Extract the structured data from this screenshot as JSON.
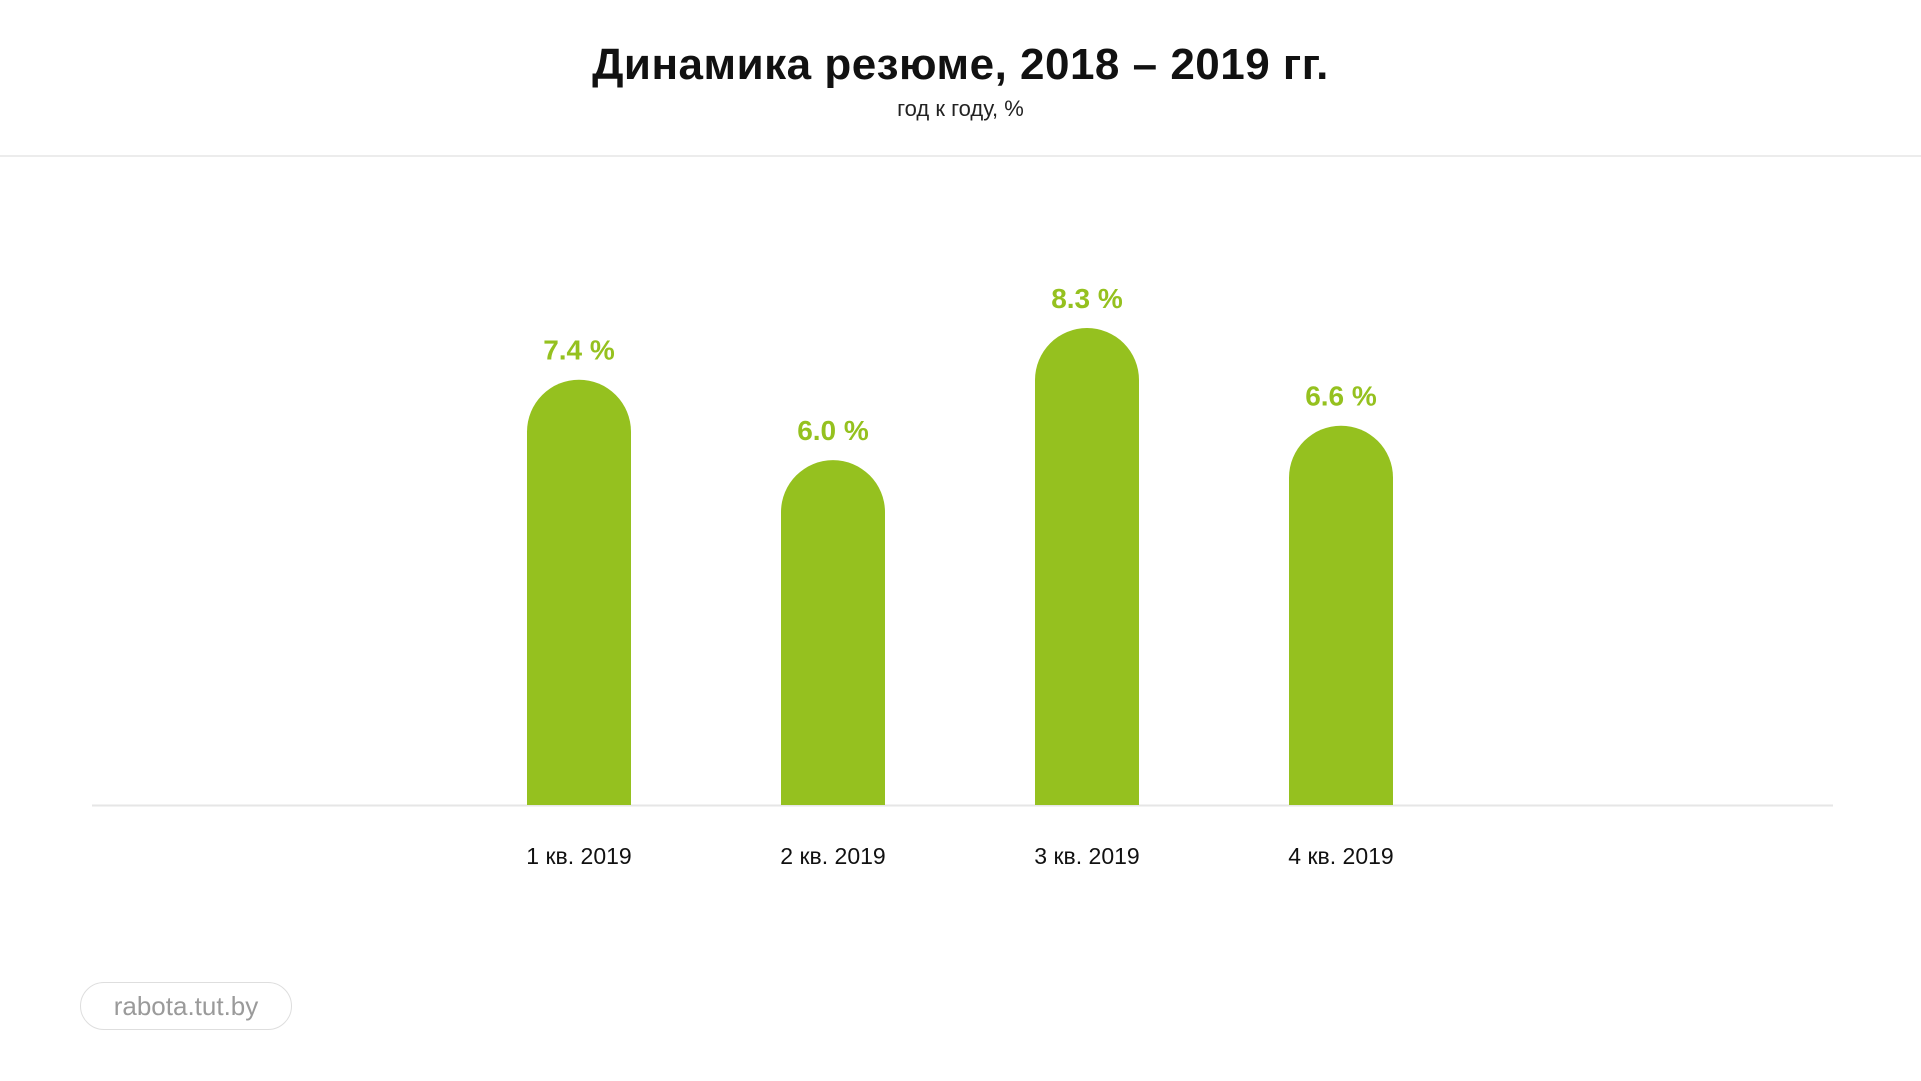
{
  "header": {
    "title": "Динамика резюме, 2018 – 2019 гг.",
    "subtitle": "год к году, %"
  },
  "chart_data": {
    "type": "bar",
    "title": "Динамика резюме, 2018 – 2019 гг.",
    "subtitle": "год к году, %",
    "categories": [
      "1 кв. 2019",
      "2 кв. 2019",
      "3 кв. 2019",
      "4 кв. 2019"
    ],
    "values": [
      7.4,
      6.0,
      8.3,
      6.6
    ],
    "value_labels": [
      "7.4 %",
      "6.0 %",
      "8.3 %",
      "6.6 %"
    ],
    "xlabel": "",
    "ylabel": "",
    "ylim": [
      0,
      8.3
    ],
    "grid": false,
    "legend": "none",
    "bar_style": "rounded-top",
    "colors": {
      "bar": "#95c11f",
      "value_label": "#95c11f",
      "baseline": "#e6e6e6",
      "category_label": "#111111"
    }
  },
  "footer": {
    "source": "rabota.tut.by"
  }
}
